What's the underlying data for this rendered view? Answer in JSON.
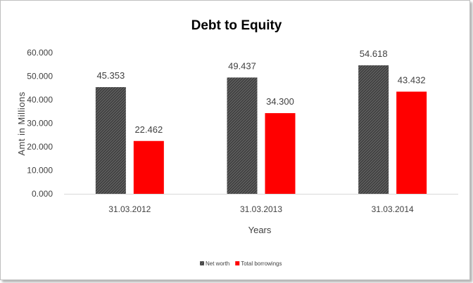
{
  "chart_data": {
    "type": "bar",
    "title": "Debt to Equity",
    "xlabel": "Years",
    "ylabel": "Amt in Millions",
    "categories": [
      "31.03.2012",
      "31.03.2013",
      "31.03.2014"
    ],
    "series": [
      {
        "name": "Net worth",
        "values": [
          45.353,
          49.437,
          54.618
        ],
        "labels": [
          "45.353",
          "49.437",
          "54.618"
        ],
        "color": "#3f3f3f"
      },
      {
        "name": "Total borrowings",
        "values": [
          22.462,
          34.3,
          43.432
        ],
        "labels": [
          "22.462",
          "34.300",
          "43.432"
        ],
        "color": "#ff0000"
      }
    ],
    "ylim": [
      0,
      60
    ],
    "yticks": [
      "0.000",
      "10.000",
      "20.000",
      "30.000",
      "40.000",
      "50.000",
      "60.000"
    ],
    "grid": false,
    "legend": "bottom"
  }
}
